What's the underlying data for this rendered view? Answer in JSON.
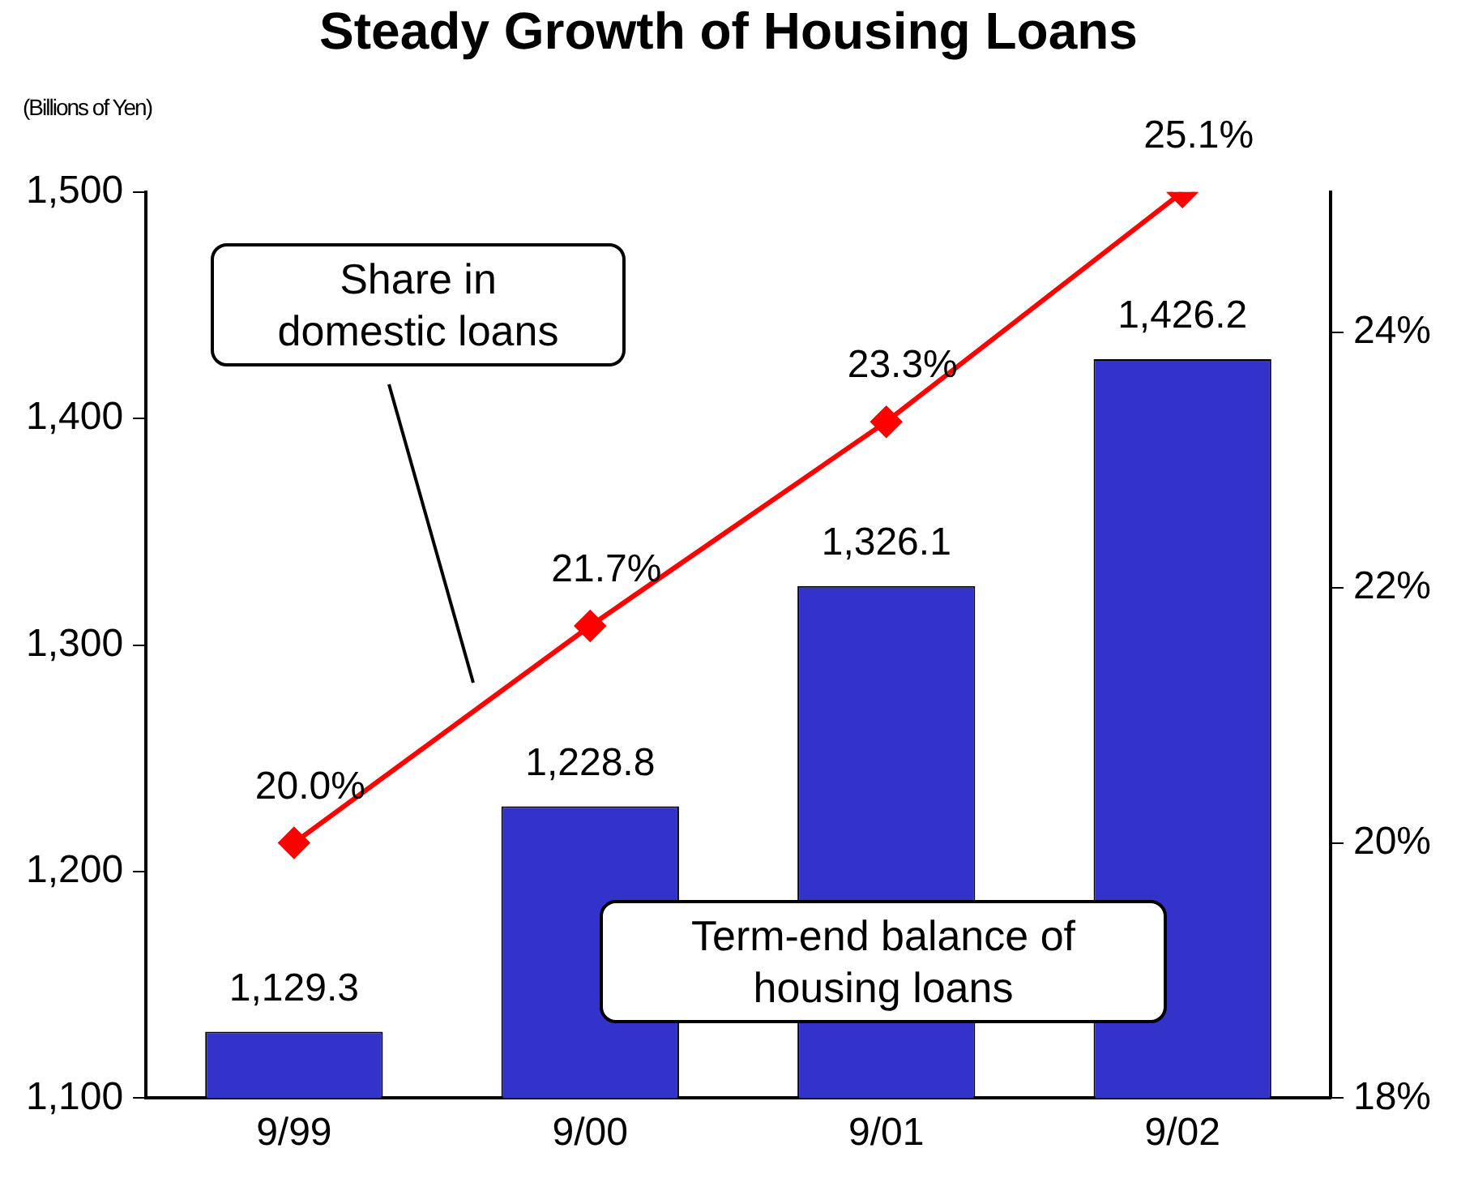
{
  "chart_data": {
    "type": "bar",
    "title": "Steady Growth of Housing Loans",
    "ylabel": "(Billions of Yen)",
    "categories": [
      "9/99",
      "9/00",
      "9/01",
      "9/02"
    ],
    "series": [
      {
        "color": "#3333cc",
        "values": [
          1129.3,
          1228.8,
          1326.1,
          1426.2
        ],
        "value_labels": [
          "1,129.3",
          "1,228.8",
          "1,326.1",
          "1,426.2"
        ]
      },
      {
        "type": "line",
        "axis": "y2",
        "color": "#ff0000",
        "values": [
          20.0,
          21.7,
          23.3,
          25.1
        ],
        "value_labels": [
          "20.0%",
          "21.7%",
          "23.3%",
          "25.1%"
        ],
        "marker": "diamond"
      }
    ],
    "ylim": [
      1100,
      1500
    ],
    "yticks": [
      {
        "value": 1100,
        "label": "1,100"
      },
      {
        "value": 1200,
        "label": "1,200"
      },
      {
        "value": 1300,
        "label": "1,300"
      },
      {
        "value": 1400,
        "label": "1,400"
      },
      {
        "value": 1500,
        "label": "1,500"
      }
    ],
    "y2lim": [
      18,
      25.1
    ],
    "y2ticks": [
      {
        "value": 18,
        "label": "18%"
      },
      {
        "value": 20,
        "label": "20%"
      },
      {
        "value": 22,
        "label": "22%"
      },
      {
        "value": 24,
        "label": "24%"
      }
    ],
    "grid": false,
    "legend": false,
    "annotations": [
      "Share in\ndomestic loans",
      "Term-end balance of\nhousing loans"
    ]
  }
}
